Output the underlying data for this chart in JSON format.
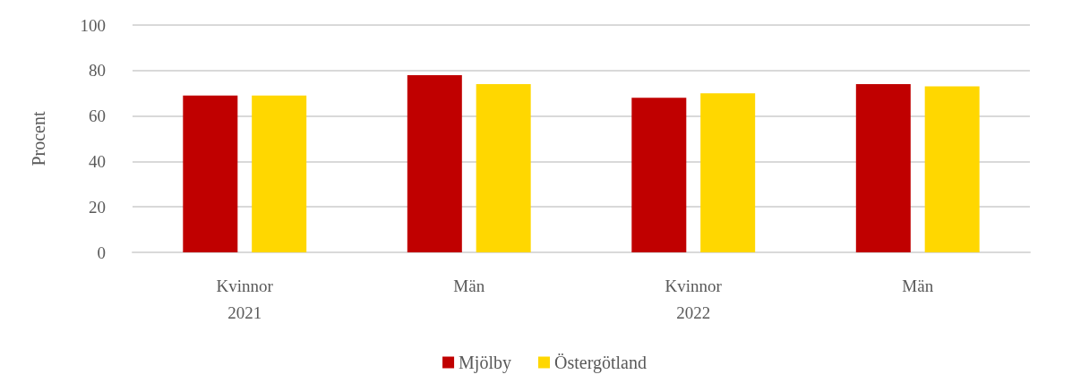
{
  "chart_data": {
    "type": "bar",
    "ylabel": "Procent",
    "categories": [
      "Kvinnor\n2021",
      "Män",
      "Kvinnor\n2022",
      "Män"
    ],
    "series": [
      {
        "name": "Mjölby",
        "color": "#c00000",
        "values": [
          69,
          78,
          68,
          74
        ]
      },
      {
        "name": "Östergötland",
        "color": "#ffd700",
        "values": [
          69,
          74,
          70,
          73
        ]
      }
    ],
    "ylim": [
      0,
      100
    ],
    "yticks": [
      0,
      20,
      40,
      60,
      80,
      100
    ],
    "grid": "y",
    "legend": "bottom"
  }
}
